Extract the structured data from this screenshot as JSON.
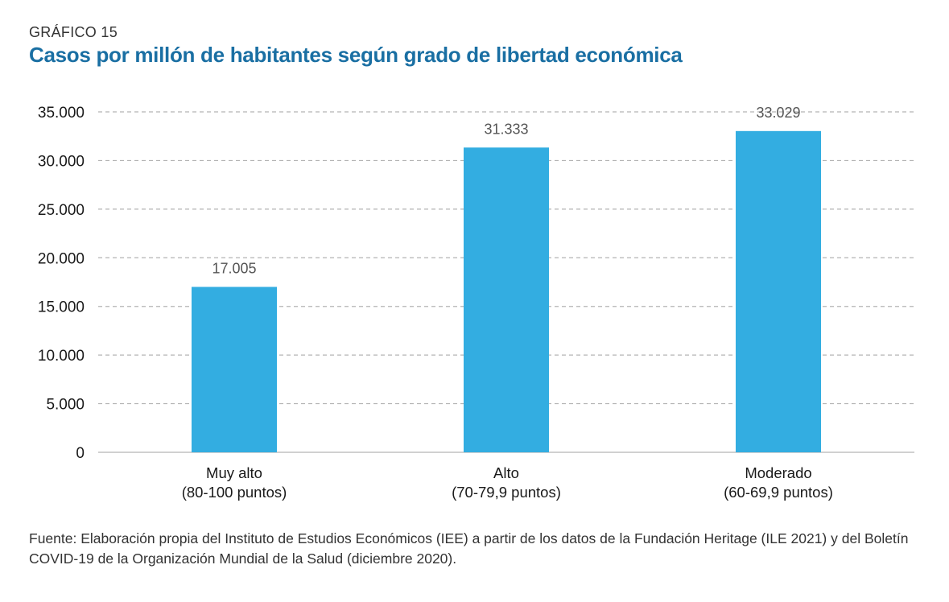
{
  "header": {
    "kicker": "GRÁFICO 15",
    "title": "Casos por millón de habitantes según grado de libertad económica"
  },
  "colors": {
    "title": "#1a6fa3",
    "bar": "#33ade1",
    "grid": "#b4b4b4",
    "value_label": "#555555",
    "axis_text": "#1a1a1a"
  },
  "chart_data": {
    "type": "bar",
    "title": "Casos por millón de habitantes según grado de libertad económica",
    "xlabel": "",
    "ylabel": "",
    "ylim": [
      0,
      35000
    ],
    "yticks": [
      0,
      5000,
      10000,
      15000,
      20000,
      25000,
      30000,
      35000
    ],
    "ytick_labels": [
      "0",
      "5.000",
      "10.000",
      "15.000",
      "20.000",
      "25.000",
      "30.000",
      "35.000"
    ],
    "grid": true,
    "categories": [
      {
        "line1": "Muy alto",
        "line2": "(80-100 puntos)"
      },
      {
        "line1": "Alto",
        "line2": "(70-79,9 puntos)"
      },
      {
        "line1": "Moderado",
        "line2": "(60-69,9 puntos)"
      }
    ],
    "values": [
      17005,
      31333,
      33029
    ],
    "value_labels": [
      "17.005",
      "31.333",
      "33.029"
    ]
  },
  "footer": {
    "source": "Fuente: Elaboración propia del Instituto de Estudios Económicos (IEE) a partir de los datos de la Fundación Heritage (ILE 2021) y del Boletín COVID-19 de la Organización Mundial de la Salud (diciembre 2020)."
  }
}
